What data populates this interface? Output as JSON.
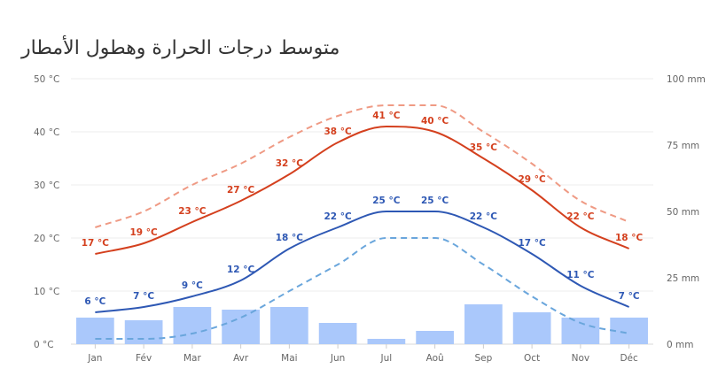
{
  "chart_data": {
    "type": "line",
    "title": "متوسط درجات الحرارة وهطول الأمطار",
    "categories": [
      "Jan",
      "Fév",
      "Mar",
      "Avr",
      "Mai",
      "Jun",
      "Jul",
      "Aoû",
      "Sep",
      "Oct",
      "Nov",
      "Déc"
    ],
    "y_left": {
      "ticks": [
        "0 °C",
        "10 °C",
        "20 °C",
        "30 °C",
        "40 °C",
        "50 °C"
      ],
      "range": [
        0,
        50
      ],
      "unit": "°C"
    },
    "y_right": {
      "ticks": [
        "0 mm",
        "25 mm",
        "50 mm",
        "75 mm",
        "100 mm"
      ],
      "range": [
        0,
        100
      ],
      "unit": "mm"
    },
    "grid": true,
    "series": [
      {
        "type": "bar",
        "axis": "right",
        "color": "#aac8fb",
        "values": [
          10,
          9,
          14,
          13,
          14,
          8,
          2,
          5,
          15,
          12,
          10,
          10
        ]
      },
      {
        "type": "line",
        "axis": "left",
        "color": "#d4401e",
        "labels": true,
        "values": [
          17,
          19,
          23,
          27,
          32,
          38,
          41,
          40,
          35,
          29,
          22,
          18
        ]
      },
      {
        "type": "line",
        "axis": "left",
        "color": "#2e58b4",
        "labels": true,
        "values": [
          6,
          7,
          9,
          12,
          18,
          22,
          25,
          25,
          22,
          17,
          11,
          7
        ]
      },
      {
        "type": "line",
        "axis": "left",
        "color": "#ef9a84",
        "dashed": true,
        "values": [
          22,
          25,
          30,
          34,
          39,
          43,
          45,
          45,
          40,
          34,
          27,
          23
        ]
      },
      {
        "type": "line",
        "axis": "left",
        "color": "#6aa6dc",
        "dashed": true,
        "values": [
          1,
          1,
          2,
          5,
          10,
          15,
          20,
          20,
          15,
          9,
          4,
          2
        ]
      }
    ]
  }
}
